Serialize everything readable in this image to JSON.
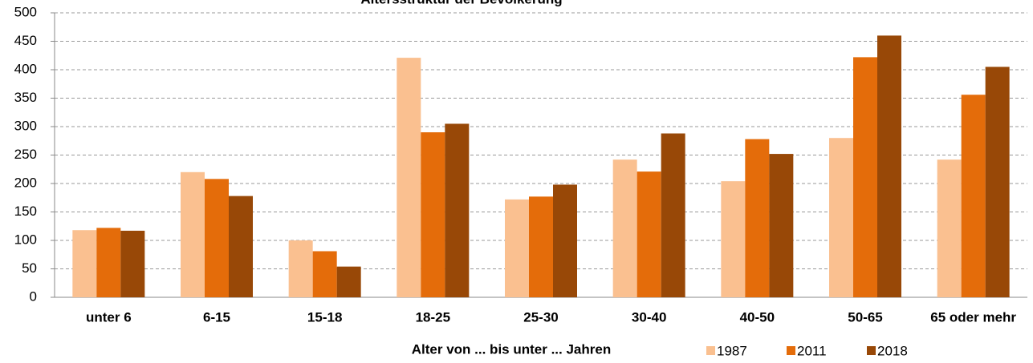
{
  "chart_data": {
    "type": "bar",
    "title": "Altersstruktur der Bevölkerung",
    "x_label": "Alter von ... bis unter ... Jahren",
    "categories": [
      "unter 6",
      "6-15",
      "15-18",
      "18-25",
      "25-30",
      "30-40",
      "40-50",
      "50-65",
      "65 oder mehr"
    ],
    "series": [
      {
        "name": "1987",
        "color": "#fac090",
        "values": [
          118,
          220,
          100,
          421,
          172,
          242,
          204,
          280,
          242
        ]
      },
      {
        "name": "2011",
        "color": "#e46c0a",
        "values": [
          122,
          208,
          81,
          290,
          177,
          221,
          278,
          422,
          356
        ]
      },
      {
        "name": "2018",
        "color": "#984807",
        "values": [
          117,
          178,
          54,
          305,
          198,
          288,
          252,
          460,
          405
        ]
      }
    ],
    "ylim": [
      0,
      500
    ],
    "yticks": [
      0,
      50,
      100,
      150,
      200,
      250,
      300,
      350,
      400,
      450,
      500
    ],
    "grid": true,
    "legend": "bottom-right"
  }
}
